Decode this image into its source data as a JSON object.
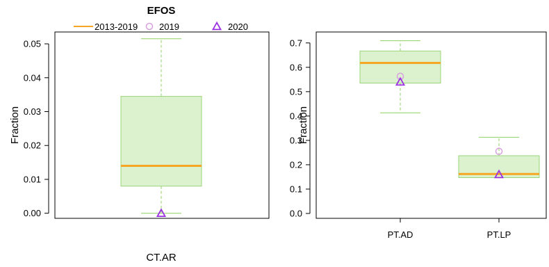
{
  "chart_data": {
    "title": "EFOS",
    "legend": {
      "placement": "top",
      "entries": [
        {
          "label": "2013-2019",
          "marker": "line",
          "color": "#f5a623"
        },
        {
          "label": "2019",
          "marker": "circle",
          "color": "#d9a0e0"
        },
        {
          "label": "2020",
          "marker": "triangle",
          "color": "#9b30e0"
        }
      ]
    },
    "colors": {
      "box_fill": "#dcf2cf",
      "box_border": "#9ad47a",
      "whisker": "#8fd060",
      "median": "#f5a623",
      "point_2019": "#d9a0e0",
      "point_2020": "#9b30e0"
    },
    "panels": [
      {
        "type": "box",
        "ylabel": "Fraction",
        "ylim": [
          -0.0015,
          0.0535
        ],
        "yticks": [
          "0.00",
          "0.01",
          "0.02",
          "0.03",
          "0.04",
          "0.05"
        ],
        "ytick_values": [
          0,
          0.01,
          0.02,
          0.03,
          0.04,
          0.05
        ],
        "categories": [
          "CT.AR"
        ],
        "category_label_position": "below-frame",
        "boxes": [
          {
            "category": "CT.AR",
            "min": 0.0,
            "q1": 0.008,
            "median": 0.014,
            "q3": 0.0345,
            "max": 0.0515,
            "point_2019": null,
            "point_2020": 0.0
          }
        ]
      },
      {
        "type": "box",
        "ylabel": "Fraction",
        "ylim": [
          -0.02,
          0.745
        ],
        "yticks": [
          "0.0",
          "0.1",
          "0.2",
          "0.3",
          "0.4",
          "0.5",
          "0.6",
          "0.7"
        ],
        "ytick_values": [
          0,
          0.1,
          0.2,
          0.3,
          0.4,
          0.5,
          0.6,
          0.7
        ],
        "categories": [
          "PT.AD",
          "PT.LP"
        ],
        "category_label_position": "axis",
        "boxes": [
          {
            "category": "PT.AD",
            "min": 0.413,
            "q1": 0.535,
            "median": 0.618,
            "q3": 0.667,
            "max": 0.709,
            "point_2019": 0.563,
            "point_2020": 0.54
          },
          {
            "category": "PT.LP",
            "min": 0.147,
            "q1": 0.147,
            "median": 0.162,
            "q3": 0.237,
            "max": 0.313,
            "point_2019": 0.255,
            "point_2020": 0.16
          }
        ]
      }
    ]
  }
}
